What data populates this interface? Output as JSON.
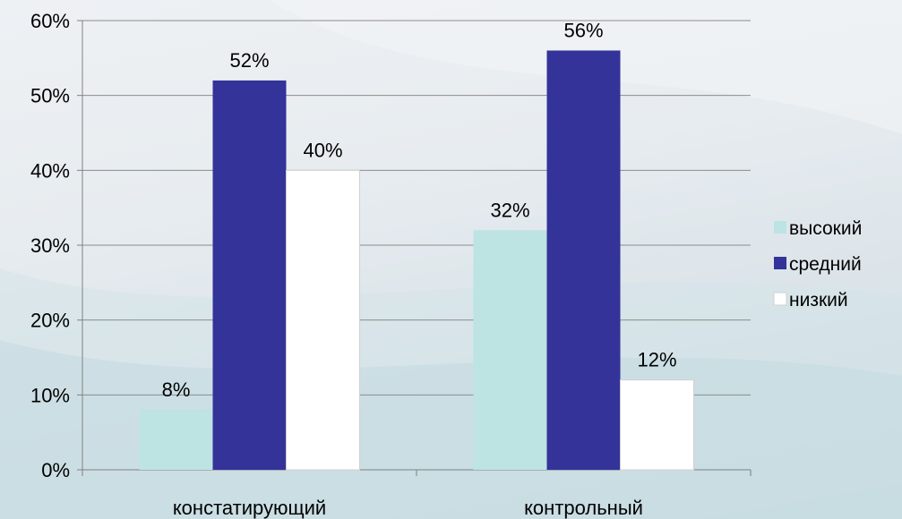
{
  "chart_data": {
    "type": "bar",
    "categories": [
      "констатирующий",
      "контрольный"
    ],
    "series": [
      {
        "name": "высокий",
        "color": "#bde3e3",
        "values": [
          8,
          32
        ]
      },
      {
        "name": "средний",
        "color": "#333399",
        "values": [
          52,
          56
        ]
      },
      {
        "name": "низкий",
        "color": "#ffffff",
        "values": [
          40,
          12
        ]
      }
    ],
    "value_suffix": "%",
    "ylim": [
      0,
      60
    ],
    "yticks": [
      0,
      10,
      20,
      30,
      40,
      50,
      60
    ],
    "grid": true,
    "legend_position": "right"
  }
}
